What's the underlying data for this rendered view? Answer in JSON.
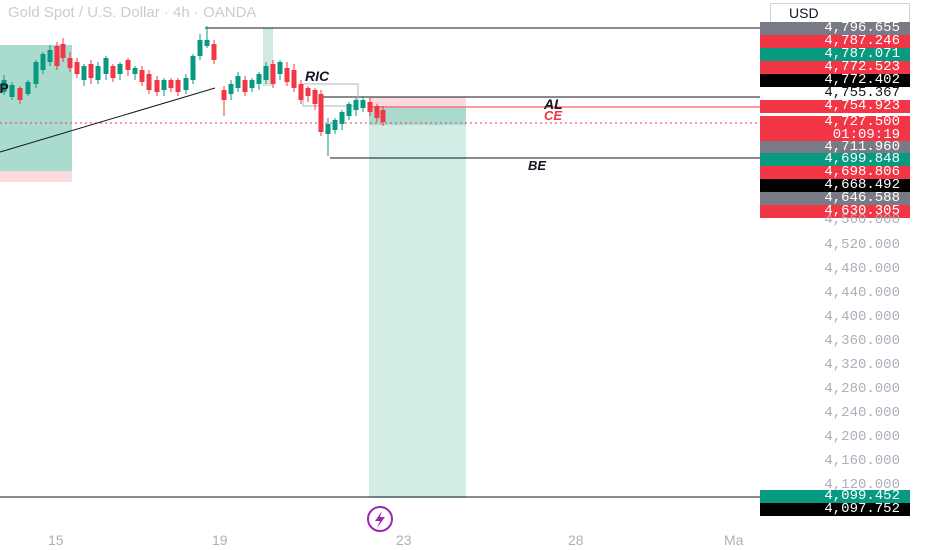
{
  "header": {
    "title": "Gold Spot / U.S. Dollar · 4h · OANDA",
    "currency": "USD"
  },
  "annotations": {
    "ric": "RIC",
    "al": "AL",
    "ce": "CE",
    "be": "BE",
    "left_partial": "EP"
  },
  "price_labels": [
    {
      "text": "4,796.655",
      "color": "#787b86"
    },
    {
      "text": "4,787.246",
      "color": "#f23645"
    },
    {
      "text": "4,787.071",
      "color": "#089981"
    },
    {
      "text": "4,772.523",
      "color": "#f23645"
    },
    {
      "text": "4,772.402",
      "color": "#000000"
    },
    {
      "text": "4,755.367",
      "color": "#ffffff"
    },
    {
      "text": "4,754.923",
      "color": "#f23645"
    },
    {
      "text": "4,727.500",
      "color": "#f23645"
    },
    {
      "text": "01:09:19",
      "color": "#f23645"
    },
    {
      "text": "4,711.960",
      "color": "#787b86"
    },
    {
      "text": "4,699.848",
      "color": "#089981"
    },
    {
      "text": "4,698.806",
      "color": "#f23645"
    },
    {
      "text": "4,668.492",
      "color": "#000000"
    },
    {
      "text": "4,646.588",
      "color": "#787b86"
    },
    {
      "text": "4,630.305",
      "color": "#f23645"
    }
  ],
  "axis_ticks": [
    "4,560.000",
    "4,520.000",
    "4,480.000",
    "4,440.000",
    "4,400.000",
    "4,360.000",
    "4,320.000",
    "4,280.000",
    "4,240.000",
    "4,200.000",
    "4,160.000",
    "4,120.000"
  ],
  "bottom_labels": [
    {
      "text": "4,099.452",
      "color": "#089981"
    },
    {
      "text": "4,097.752",
      "color": "#000000"
    }
  ],
  "time_axis": [
    "15",
    "19",
    "23",
    "28",
    "Ma"
  ],
  "colors": {
    "up": "#089981",
    "down": "#f23645",
    "zone_green": "#d2ece6",
    "zone_red": "#fbdbdd"
  },
  "icons": {
    "flash": "lightning-icon"
  }
}
